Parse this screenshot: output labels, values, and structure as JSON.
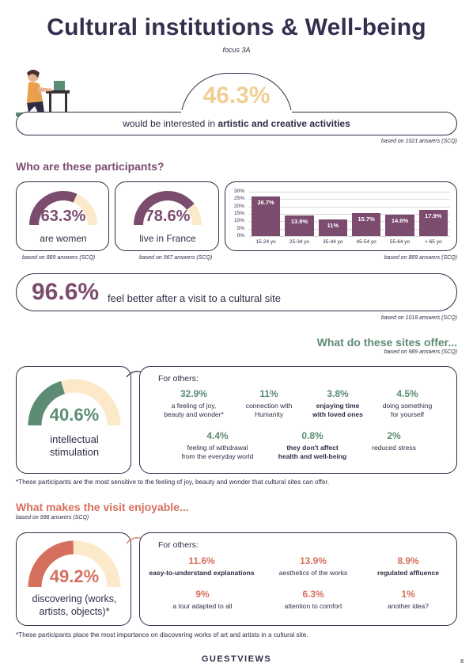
{
  "title": "Cultural institutions & Well-being",
  "subtitle": "focus 3A",
  "hero": {
    "value": "46.3%",
    "text_prefix": "would be interested in ",
    "text_bold": "artistic and creative activities",
    "source": "based on 1021 answers (SCQ)"
  },
  "participants": {
    "heading": "Who are these participants?",
    "women": {
      "value": "63.3%",
      "label": "are women",
      "fraction": 0.633,
      "source": "based on 889 answers (SCQ)"
    },
    "france": {
      "value": "78.6%",
      "label": "live in France",
      "fraction": 0.786,
      "source": "based on 967 answers (SCQ)"
    },
    "age_source": "based on 889 answers (SCQ)"
  },
  "chart_data": {
    "type": "bar",
    "categories": [
      "15-24 yo",
      "25-34 yo",
      "35-44 yo",
      "45-54 yo",
      "55-64 yo",
      "+ 65 yo"
    ],
    "values": [
      26.7,
      13.9,
      11,
      15.7,
      14.6,
      17.9
    ],
    "value_labels": [
      "26.7%",
      "13.9%",
      "11%",
      "15.7%",
      "14.6%",
      "17.9%"
    ],
    "y_ticks": [
      "30%",
      "25%",
      "20%",
      "15%",
      "10%",
      "5%",
      "0%"
    ],
    "ylim": [
      0,
      30
    ],
    "grid": true,
    "colors": {
      "bar": "#7b4c6e"
    }
  },
  "feel_better": {
    "value": "96.6%",
    "text": "feel better after a visit to a cultural site",
    "source": "based on 1018 answers (SCQ)"
  },
  "offer": {
    "heading": "What do these sites offer...",
    "source": "based on 989 answers (SCQ)",
    "main_value": "40.6%",
    "main_label_1": "intellectual",
    "main_label_2": "stimulation",
    "main_fraction": 0.406,
    "others_label": "For others:",
    "items": [
      {
        "value": "32.9%",
        "line1": "a feeling of joy,",
        "line2": "beauty and wonder*",
        "bold": false
      },
      {
        "value": "11%",
        "line1": "connection with",
        "line2": "Humanity",
        "bold": false
      },
      {
        "value": "3.8%",
        "line1": "enjoying time",
        "line2": "with loved ones",
        "bold": true
      },
      {
        "value": "4.5%",
        "line1": "doing something",
        "line2": "for yourself",
        "bold": false
      },
      {
        "value": "4.4%",
        "line1": "feeling of withdrawal",
        "line2": "from the everyday world",
        "bold": false
      },
      {
        "value": "0.8%",
        "line1": "they don't affect",
        "line2": "health and well-being",
        "bold": true
      },
      {
        "value": "2%",
        "line1": "reduced stress",
        "line2": "",
        "bold": false
      }
    ],
    "footnote": "*These participants are the most sensitive to the feeling of joy, beauty and wonder that cultural sites can offer."
  },
  "enjoyable": {
    "heading": "What makes the visit enjoyable...",
    "source": "based on 998 answers (SCQ)",
    "main_value": "49.2%",
    "main_label_1": "discovering (works,",
    "main_label_2": "artists, objects)*",
    "main_fraction": 0.492,
    "others_label": "For others:",
    "items": [
      {
        "value": "11.6%",
        "text": "easy-to-understand explanations",
        "bold": true
      },
      {
        "value": "13.9%",
        "text": "aesthetics of the works",
        "bold": false
      },
      {
        "value": "8.9%",
        "text": "regulated affluence",
        "bold": true
      },
      {
        "value": "9%",
        "text": "a tour adapted to all",
        "bold": false
      },
      {
        "value": "6.3%",
        "text": "attention to comfort",
        "bold": false
      },
      {
        "value": "1%",
        "text": "another idea?",
        "bold": false
      }
    ],
    "footnote": "*These participants place the most importance on discovering works of art and artists in a cultural site."
  },
  "footer": {
    "brand": "GUESTVIEWS",
    "page": "8"
  },
  "colors": {
    "plum": "#7b4c6e",
    "green": "#5d8c74",
    "coral": "#d6705e",
    "cream": "#fbe9c9",
    "navy": "#2f2c45"
  }
}
